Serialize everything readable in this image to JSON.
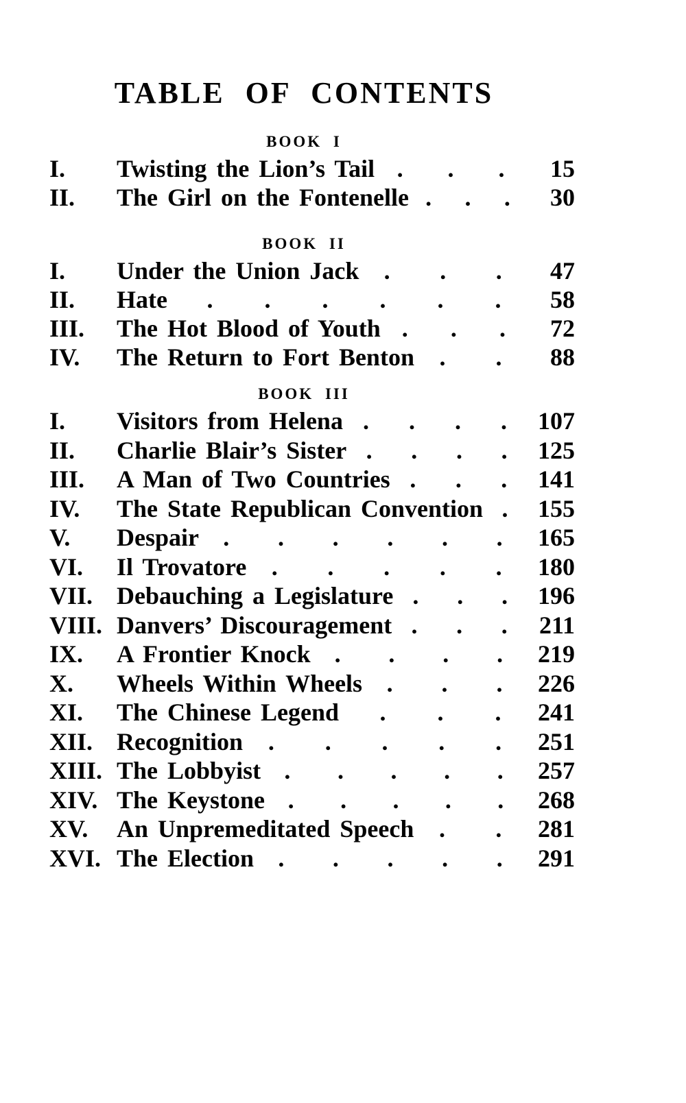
{
  "page": {
    "title": "TABLE OF CONTENTS"
  },
  "leader_dot_char": ".",
  "colors": {
    "ink": "#040404",
    "paper": "#ffffff"
  },
  "books": [
    {
      "label": "BOOK I",
      "chapters": [
        {
          "numeral": "I.",
          "title": "Twisting the Lion’s Tail",
          "dots": 3,
          "page": "15"
        },
        {
          "numeral": "II.",
          "title": "The Girl on the Fontenelle",
          "dots": 3,
          "page": "30"
        }
      ]
    },
    {
      "label": "BOOK II",
      "chapters": [
        {
          "numeral": "I.",
          "title": "Under the Union Jack",
          "dots": 3,
          "page": "47"
        },
        {
          "numeral": "II.",
          "title": "Hate",
          "dots": 6,
          "page": "58"
        },
        {
          "numeral": "III.",
          "title": "The Hot Blood of Youth",
          "dots": 3,
          "page": "72"
        },
        {
          "numeral": "IV.",
          "title": "The Return to Fort Benton",
          "dots": 2,
          "page": "88"
        }
      ]
    },
    {
      "label": "BOOK III",
      "chapters": [
        {
          "numeral": "I.",
          "title": "Visitors from Helena",
          "dots": 4,
          "page": "107"
        },
        {
          "numeral": "II.",
          "title": "Charlie Blair’s Sister",
          "dots": 4,
          "page": "125"
        },
        {
          "numeral": "III.",
          "title": "A Man of Two Countries",
          "dots": 3,
          "page": "141"
        },
        {
          "numeral": "IV.",
          "title": "The State Republican Convention",
          "dots": 1,
          "page": "155"
        },
        {
          "numeral": "V.",
          "title": "Despair",
          "dots": 6,
          "page": "165"
        },
        {
          "numeral": "VI.",
          "title": "Il Trovatore",
          "dots": 5,
          "page": "180"
        },
        {
          "numeral": "VII.",
          "title": "Debauching a Legislature",
          "dots": 3,
          "page": "196"
        },
        {
          "numeral": "VIII.",
          "title": "Danvers’ Discouragement",
          "dots": 3,
          "page": "211"
        },
        {
          "numeral": "IX.",
          "title": "A Frontier Knock",
          "dots": 4,
          "page": "219"
        },
        {
          "numeral": "X.",
          "title": "Wheels Within Wheels",
          "dots": 3,
          "page": "226"
        },
        {
          "numeral": "XI.",
          "title": "The Chinese Legend",
          "dots": 3,
          "page": "241"
        },
        {
          "numeral": "XII.",
          "title": "Recognition",
          "dots": 5,
          "page": "251"
        },
        {
          "numeral": "XIII.",
          "title": "The Lobbyist",
          "dots": 5,
          "page": "257"
        },
        {
          "numeral": "XIV.",
          "title": "The Keystone",
          "dots": 5,
          "page": "268"
        },
        {
          "numeral": "XV.",
          "title": "An Unpremeditated Speech",
          "dots": 2,
          "page": "281"
        },
        {
          "numeral": "XVI.",
          "title": "The Election",
          "dots": 5,
          "page": "291"
        }
      ]
    }
  ]
}
